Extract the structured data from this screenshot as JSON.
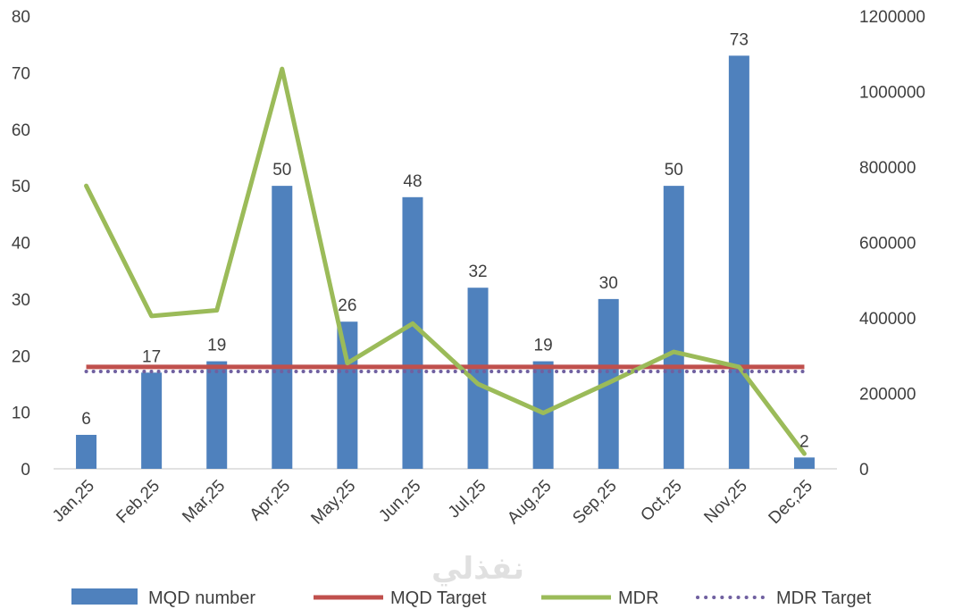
{
  "chart_data": {
    "type": "bar",
    "categories": [
      "Jan,25",
      "Feb,25",
      "Mar,25",
      "Apr,25",
      "May,25",
      "Jun,25",
      "Jul,25",
      "Aug,25",
      "Sep,25",
      "Oct,25",
      "Nov,25",
      "Dec,25"
    ],
    "series": [
      {
        "name": "MQD number",
        "type": "bar",
        "axis": "left",
        "color": "#4f81bd",
        "values": [
          6,
          17,
          19,
          50,
          26,
          48,
          32,
          19,
          30,
          50,
          73,
          2
        ]
      },
      {
        "name": "MQD Target",
        "type": "line",
        "axis": "left",
        "color": "#c0504d",
        "values": [
          18,
          18,
          18,
          18,
          18,
          18,
          18,
          18,
          18,
          18,
          18,
          18
        ]
      },
      {
        "name": "MDR",
        "type": "line",
        "axis": "right",
        "color": "#9bbb59",
        "values": [
          750000,
          405000,
          420000,
          1060000,
          280000,
          385000,
          225000,
          148000,
          228000,
          310000,
          270000,
          40000
        ]
      },
      {
        "name": "MDR Target",
        "type": "line",
        "style": "dotted",
        "axis": "right",
        "color": "#7060a0",
        "values": [
          258000,
          258000,
          258000,
          258000,
          258000,
          258000,
          258000,
          258000,
          258000,
          258000,
          258000,
          258000
        ]
      }
    ],
    "y_left": {
      "range": [
        0,
        80
      ],
      "ticks": [
        "0",
        "10",
        "20",
        "30",
        "40",
        "50",
        "60",
        "70",
        "80"
      ]
    },
    "y_right": {
      "range": [
        0,
        1200000
      ],
      "ticks": [
        "0",
        "200000",
        "400000",
        "600000",
        "800000",
        "1000000",
        "1200000"
      ]
    },
    "data_labels": [
      "6",
      "17",
      "19",
      "50",
      "26",
      "48",
      "32",
      "19",
      "30",
      "50",
      "73",
      "2"
    ],
    "grid": false,
    "legend_position": "bottom",
    "title": "",
    "xlabel": "",
    "ylabel": ""
  },
  "watermark": "نفذلي"
}
